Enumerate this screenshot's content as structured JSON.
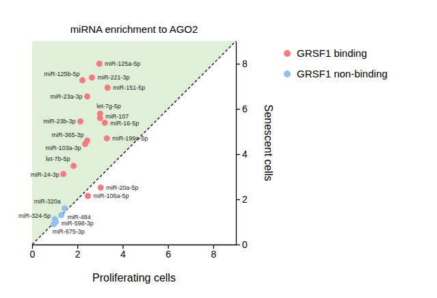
{
  "chart_data": {
    "type": "scatter",
    "title": "miRNA enrichment to AGO2",
    "x_label": "Proliferating cells",
    "y_label": "Senescent cells",
    "xlim": [
      0,
      9
    ],
    "ylim": [
      0,
      9
    ],
    "xticks": [
      0,
      2,
      4,
      6,
      8
    ],
    "yticks": [
      0,
      2,
      4,
      6,
      8
    ],
    "legend": "right",
    "series": [
      {
        "name": "GRSF1 binding",
        "color": "#f47a7f",
        "labels": [
          "miR-125a-5p",
          "miR-125b-5p",
          "miR-221-3p",
          "miR-151-5p",
          "miR-23a-3p",
          "let-7g-5p",
          "miR-107",
          "miR-16-5p",
          "miR-23b-3p",
          "miR-199a-5p",
          "miR-365-3p",
          "miR-103a-3p",
          "let-7b-5p",
          "miR-24-3p",
          "miR-20a-5p",
          "miR-106a-5p"
        ],
        "x": [
          2.97,
          2.22,
          2.64,
          3.33,
          2.43,
          3.0,
          3.0,
          3.21,
          2.13,
          3.3,
          2.43,
          2.34,
          1.83,
          1.38,
          3.03,
          2.46
        ],
        "values": [
          8.0,
          7.27,
          7.39,
          6.94,
          6.55,
          5.79,
          5.6,
          5.39,
          5.45,
          4.7,
          4.6,
          4.45,
          3.48,
          3.12,
          2.52,
          2.15
        ]
      },
      {
        "name": "GRSF1 non-binding",
        "color": "#8fc0ee",
        "labels": [
          "miR-320a",
          "miR-484",
          "miR-324-5p",
          "miR-598-3p",
          "miR-675-3p"
        ],
        "x": [
          1.44,
          1.29,
          1.0,
          1.05,
          0.96
        ],
        "values": [
          1.6,
          1.3,
          1.12,
          1.0,
          0.91
        ]
      }
    ]
  }
}
